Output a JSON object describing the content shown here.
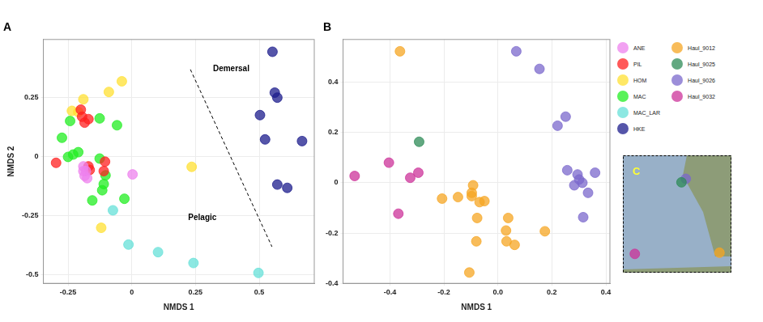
{
  "chart_data": [
    {
      "type": "scatter",
      "title": "A",
      "x_label": "NMDS 1",
      "y_label": "NMDS 2",
      "xlim": [
        -0.347,
        0.716
      ],
      "ylim": [
        -0.535,
        0.497
      ],
      "xticks": [
        -0.25,
        0,
        0.25,
        0.5
      ],
      "yticks": [
        -0.5,
        -0.25,
        0,
        0.25
      ],
      "grid": true,
      "legend": "right",
      "annotations": [
        {
          "text": "Demersal",
          "x": 0.39,
          "y": 0.371
        },
        {
          "text": "Pelagic",
          "x": 0.277,
          "y": -0.258
        }
      ],
      "divider": {
        "x": [
          0.23,
          0.55
        ],
        "y": [
          0.37,
          -0.38
        ],
        "line_style": "dashed"
      },
      "series": [
        {
          "name": "ANE",
          "color": "#ee82ee",
          "x": [
            -0.19,
            -0.18,
            -0.185,
            -0.175,
            -0.19,
            0.003
          ],
          "values": [
            -0.04,
            -0.06,
            -0.08,
            -0.09,
            -0.06,
            -0.074
          ]
        },
        {
          "name": "PIL",
          "color": "#ff2020",
          "x": [
            -0.297,
            -0.2,
            -0.195,
            -0.17,
            -0.185,
            -0.105,
            -0.11,
            -0.17,
            -0.165
          ],
          "values": [
            -0.025,
            0.2,
            0.17,
            0.16,
            0.145,
            -0.02,
            -0.06,
            -0.04,
            -0.055
          ]
        },
        {
          "name": "HOM",
          "color": "#ffe033",
          "x": [
            -0.039,
            -0.09,
            -0.19,
            -0.235,
            -0.21,
            0.235,
            -0.12
          ],
          "values": [
            0.32,
            0.275,
            0.244,
            0.195,
            0.19,
            -0.042,
            -0.3
          ]
        },
        {
          "name": "MAC",
          "color": "#22ee22",
          "x": [
            -0.274,
            -0.242,
            -0.126,
            -0.058,
            -0.23,
            -0.21,
            -0.25,
            -0.126,
            -0.103,
            -0.116,
            -0.155,
            -0.029,
            -0.11
          ],
          "values": [
            0.081,
            0.152,
            0.163,
            0.134,
            0.01,
            0.02,
            0.0,
            -0.007,
            -0.078,
            -0.141,
            -0.184,
            -0.177,
            -0.115
          ]
        },
        {
          "name": "MAC_LAR",
          "color": "#66e0d8",
          "x": [
            -0.074,
            -0.013,
            0.103,
            0.242,
            0.497
          ],
          "values": [
            -0.226,
            -0.371,
            -0.403,
            -0.449,
            -0.491
          ]
        },
        {
          "name": "HKE",
          "color": "#1c1c8c",
          "x": [
            0.552,
            0.561,
            0.571,
            0.503,
            0.523,
            0.668,
            0.571,
            0.61
          ],
          "values": [
            0.445,
            0.272,
            0.251,
            0.177,
            0.074,
            0.067,
            -0.117,
            -0.131
          ]
        }
      ]
    },
    {
      "type": "scatter",
      "title": "B",
      "x_label": "NMDS 1",
      "xlim": [
        -0.574,
        0.415
      ],
      "ylim": [
        -0.4,
        0.57
      ],
      "xticks": [
        -0.4,
        -0.2,
        {
          "value": 0,
          "label": "0.0"
        },
        0.2,
        0.4
      ],
      "yticks": [
        -0.4,
        -0.2,
        0,
        0.2,
        0.4
      ],
      "grid": true,
      "legend": "right",
      "series": [
        {
          "name": "Haul_9012",
          "color": "#f5a623",
          "x": [
            -0.363,
            -0.207,
            -0.148,
            -0.092,
            -0.097,
            -0.097,
            -0.068,
            -0.05,
            -0.077,
            0.038,
            0.03,
            0.032,
            0.062,
            -0.08,
            0.174,
            -0.106
          ],
          "values": [
            0.523,
            -0.063,
            -0.057,
            -0.01,
            -0.04,
            -0.053,
            -0.077,
            -0.073,
            -0.14,
            -0.14,
            -0.19,
            -0.233,
            -0.247,
            -0.233,
            -0.193,
            -0.357
          ]
        },
        {
          "name": "Haul_9025",
          "color": "#2e8b57",
          "x": [
            -0.292
          ],
          "values": [
            0.163
          ]
        },
        {
          "name": "Haul_9026",
          "color": "#7b68cc",
          "x": [
            0.068,
            0.154,
            0.251,
            0.221,
            0.257,
            0.295,
            0.301,
            0.283,
            0.313,
            0.36,
            0.334,
            0.316
          ],
          "values": [
            0.523,
            0.453,
            0.263,
            0.227,
            0.05,
            0.033,
            0.013,
            -0.01,
            0,
            0.04,
            -0.04,
            -0.137
          ]
        },
        {
          "name": "Haul_9032",
          "color": "#cc3399",
          "x": [
            -0.531,
            -0.404,
            -0.325,
            -0.295,
            -0.369
          ],
          "values": [
            0.027,
            0.08,
            0.02,
            0.04,
            -0.123
          ]
        }
      ]
    },
    {
      "type": "map",
      "title": "C",
      "xlim": [
        0,
        1
      ],
      "ylim": [
        0,
        1
      ],
      "tick_labels": false,
      "grid": false,
      "series": [
        {
          "name": "Haul_9025",
          "color": "#2e8b57",
          "x": [
            0.54
          ],
          "values": [
            0.77
          ]
        },
        {
          "name": "Haul_9026",
          "color": "#7b68cc",
          "x": [
            0.58
          ],
          "values": [
            0.8
          ]
        },
        {
          "name": "Haul_9032",
          "color": "#cc3399",
          "x": [
            0.11
          ],
          "values": [
            0.16
          ]
        },
        {
          "name": "Haul_9012",
          "color": "#f5a623",
          "x": [
            0.89
          ],
          "values": [
            0.17
          ]
        }
      ]
    }
  ]
}
